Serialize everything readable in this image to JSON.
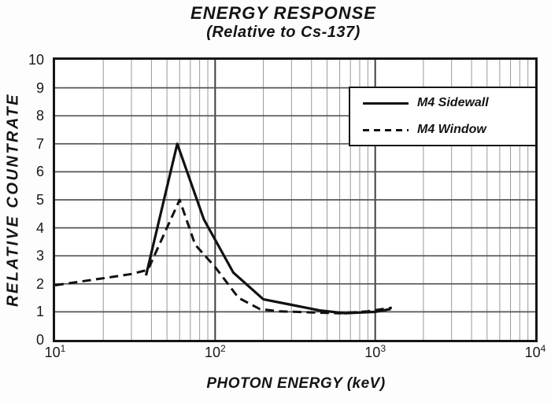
{
  "figure": {
    "title": "ENERGY RESPONSE",
    "subtitle": "(Relative to Cs-137)"
  },
  "chart_data": {
    "type": "line",
    "title": "ENERGY RESPONSE",
    "subtitle": "(Relative to Cs-137)",
    "xlabel": "PHOTON ENERGY (keV)",
    "ylabel": "RELATIVE COUNTRATE",
    "x_scale": "log",
    "xlim": [
      10,
      10000
    ],
    "ylim": [
      0,
      10
    ],
    "x_tick_exponents": [
      "1",
      "2",
      "3",
      "4"
    ],
    "x_tick_base": "10",
    "y_ticks": [
      0,
      1,
      2,
      3,
      4,
      5,
      6,
      7,
      8,
      9,
      10
    ],
    "grid": "full log grid: vertical decade + minor lines, horizontal lines at each integer",
    "legend_position": "upper-right-inside",
    "series": [
      {
        "name": "M4 Sidewall",
        "line_style": "solid",
        "color": "#111111",
        "points": [
          [
            37,
            2.3
          ],
          [
            58,
            7.0
          ],
          [
            85,
            4.3
          ],
          [
            130,
            2.4
          ],
          [
            200,
            1.45
          ],
          [
            300,
            1.25
          ],
          [
            450,
            1.05
          ],
          [
            650,
            0.95
          ],
          [
            1000,
            1.0
          ],
          [
            1250,
            1.1
          ]
        ]
      },
      {
        "name": "M4 Window",
        "line_style": "dashed",
        "color": "#111111",
        "points": [
          [
            10,
            1.95
          ],
          [
            20,
            2.2
          ],
          [
            30,
            2.35
          ],
          [
            38,
            2.5
          ],
          [
            60,
            5.0
          ],
          [
            75,
            3.4
          ],
          [
            100,
            2.6
          ],
          [
            140,
            1.5
          ],
          [
            190,
            1.1
          ],
          [
            250,
            1.02
          ],
          [
            400,
            0.98
          ],
          [
            600,
            0.95
          ],
          [
            900,
            1.02
          ],
          [
            1270,
            1.15
          ]
        ]
      }
    ]
  },
  "colors": {
    "background": "#fdfdfd",
    "plot_bg": "#ffffff",
    "axis_border": "#161616",
    "grid_minor": "#9a9a9a",
    "grid_major": "#3f3f3f",
    "grid_horizontal": "#555555",
    "curve": "#111111",
    "text": "#1a1a1a"
  }
}
